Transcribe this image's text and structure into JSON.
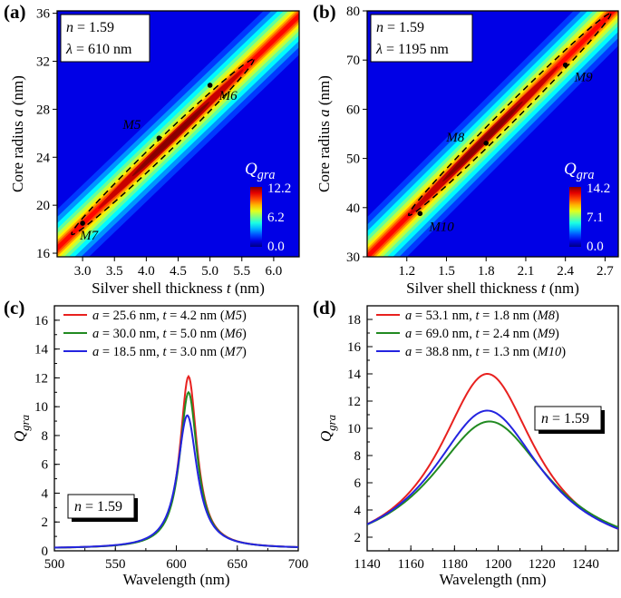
{
  "chart_data": [
    {
      "panel": "(a)",
      "type": "heatmap",
      "xlabel": "Silver shell thickness t (nm)",
      "ylabel": "Core radius a (nm)",
      "xlim": [
        2.6,
        6.4
      ],
      "ylim": [
        15.7,
        36.2
      ],
      "xticks": [
        "3.0",
        "3.5",
        "4.0",
        "4.5",
        "5.0",
        "5.5",
        "6.0"
      ],
      "yticks": [
        "16",
        "20",
        "24",
        "28",
        "32",
        "36"
      ],
      "info": [
        "n = 1.59",
        "λ = 610 nm"
      ],
      "colorbar": {
        "title": "Q_gra",
        "max": "12.2",
        "mid": "6.2",
        "min": "0.0"
      },
      "ridge": [
        [
          2.6,
          16.4
        ],
        [
          6.4,
          35.8
        ]
      ],
      "peak_value": 12.2,
      "markers": [
        {
          "label": "M5",
          "t": 4.2,
          "a": 25.6
        },
        {
          "label": "M6",
          "t": 5.0,
          "a": 30.0
        },
        {
          "label": "M7",
          "t": 3.0,
          "a": 18.5
        }
      ]
    },
    {
      "panel": "(b)",
      "type": "heatmap",
      "xlabel": "Silver shell thickness t (nm)",
      "ylabel": "Core radius a (nm)",
      "xlim": [
        0.9,
        2.8
      ],
      "ylim": [
        30,
        80
      ],
      "xticks": [
        "1.2",
        "1.5",
        "1.8",
        "2.1",
        "2.4",
        "2.7"
      ],
      "yticks": [
        "30",
        "40",
        "50",
        "60",
        "70",
        "80"
      ],
      "info": [
        "n = 1.59",
        "λ = 1195 nm"
      ],
      "colorbar": {
        "title": "Q_gra",
        "max": "14.2",
        "mid": "7.1",
        "min": "0.0"
      },
      "ridge": [
        [
          0.9,
          30.0
        ],
        [
          2.8,
          81.0
        ]
      ],
      "peak_value": 14.2,
      "markers": [
        {
          "label": "M8",
          "t": 1.8,
          "a": 53.1
        },
        {
          "label": "M9",
          "t": 2.4,
          "a": 69.0
        },
        {
          "label": "M10",
          "t": 1.3,
          "a": 38.8
        }
      ]
    },
    {
      "panel": "(c)",
      "type": "line",
      "xlabel": "Wavelength (nm)",
      "ylabel": "Q_gra",
      "xlim": [
        500,
        700
      ],
      "ylim": [
        0,
        17
      ],
      "xticks": [
        "500",
        "550",
        "600",
        "650",
        "700"
      ],
      "yticks": [
        "0",
        "2",
        "4",
        "6",
        "8",
        "10",
        "12",
        "14",
        "16"
      ],
      "annotation": "n = 1.59",
      "series": [
        {
          "name": "a = 25.6 nm, t = 4.2 nm (M5)",
          "color": "#e8211f",
          "peak_x": 610,
          "peak_y": 12.1,
          "hwhm": 8.5,
          "base": 0.15
        },
        {
          "name": "a = 30.0 nm, t = 5.0 nm (M6)",
          "color": "#218a21",
          "peak_x": 610,
          "peak_y": 11.0,
          "hwhm": 8.8,
          "base": 0.15
        },
        {
          "name": "a = 18.5 nm, t = 3.0 nm (M7)",
          "color": "#2424e0",
          "peak_x": 609,
          "peak_y": 9.4,
          "hwhm": 9.8,
          "base": 0.15
        }
      ]
    },
    {
      "panel": "(d)",
      "type": "line",
      "xlabel": "Wavelength (nm)",
      "ylabel": "Q_gra",
      "xlim": [
        1140,
        1255
      ],
      "ylim": [
        1,
        19
      ],
      "xticks": [
        "1140",
        "1160",
        "1180",
        "1200",
        "1220",
        "1240"
      ],
      "yticks": [
        "2",
        "4",
        "6",
        "8",
        "10",
        "12",
        "14",
        "16",
        "18"
      ],
      "annotation": "n = 1.59",
      "series": [
        {
          "name": "a = 53.1 nm, t = 1.8 nm (M8)",
          "color": "#e8211f",
          "peak_x": 1195,
          "peak_y": 14.0,
          "hwhm": 27,
          "base": 0.3
        },
        {
          "name": "a = 69.0 nm, t = 2.4 nm (M9)",
          "color": "#218a21",
          "peak_x": 1196,
          "peak_y": 10.5,
          "hwhm": 33,
          "base": 0.3
        },
        {
          "name": "a = 38.8 nm, t = 1.3 nm (M10)",
          "color": "#2424e0",
          "peak_x": 1195,
          "peak_y": 11.3,
          "hwhm": 31,
          "base": 0.3
        }
      ]
    }
  ]
}
